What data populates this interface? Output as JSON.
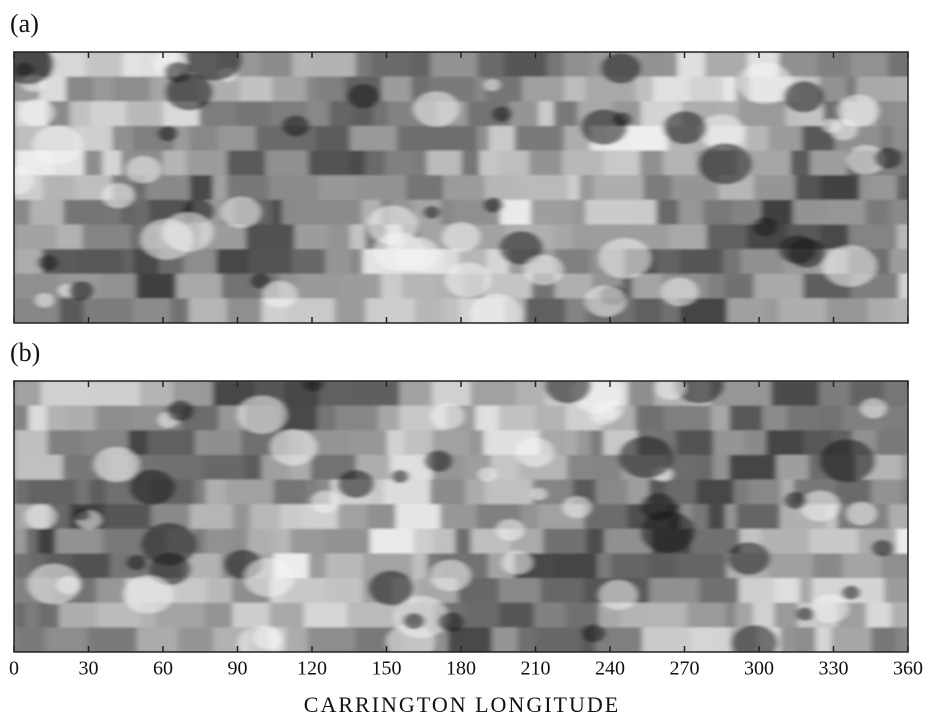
{
  "chart_data": {
    "type": "image",
    "panels": [
      {
        "label": "(a)"
      },
      {
        "label": "(b)"
      }
    ],
    "xlabel": "CARRINGTON LONGITUDE",
    "xlim": [
      0,
      360
    ],
    "xticks": [
      0,
      30,
      60,
      90,
      120,
      150,
      180,
      210,
      240,
      270,
      300,
      330,
      360
    ]
  }
}
